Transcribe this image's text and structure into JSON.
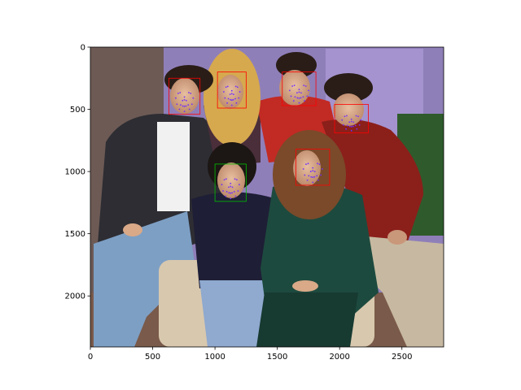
{
  "chart_data": {
    "type": "image",
    "title": "",
    "xlabel": "",
    "ylabel": "",
    "xlim": [
      0,
      2835
    ],
    "ylim": [
      2410,
      0
    ],
    "x_ticks": [
      0,
      500,
      1000,
      1500,
      2000,
      2500
    ],
    "y_ticks": [
      0,
      500,
      1000,
      1500,
      2000
    ],
    "grid": false,
    "image_content": "group photo of six people",
    "colors": {
      "box_red": "#ff0000",
      "box_green": "#00c000",
      "landmark": "#7030ff"
    },
    "face_boxes": [
      {
        "x": 630,
        "y": 250,
        "width": 250,
        "height": 290,
        "color": "box_red"
      },
      {
        "x": 1020,
        "y": 200,
        "width": 230,
        "height": 290,
        "color": "box_red"
      },
      {
        "x": 1540,
        "y": 200,
        "width": 270,
        "height": 270,
        "color": "box_red"
      },
      {
        "x": 1960,
        "y": 460,
        "width": 270,
        "height": 230,
        "color": "box_red"
      },
      {
        "x": 1000,
        "y": 940,
        "width": 250,
        "height": 300,
        "color": "box_green"
      },
      {
        "x": 1650,
        "y": 820,
        "width": 270,
        "height": 290,
        "color": "box_red"
      }
    ]
  }
}
